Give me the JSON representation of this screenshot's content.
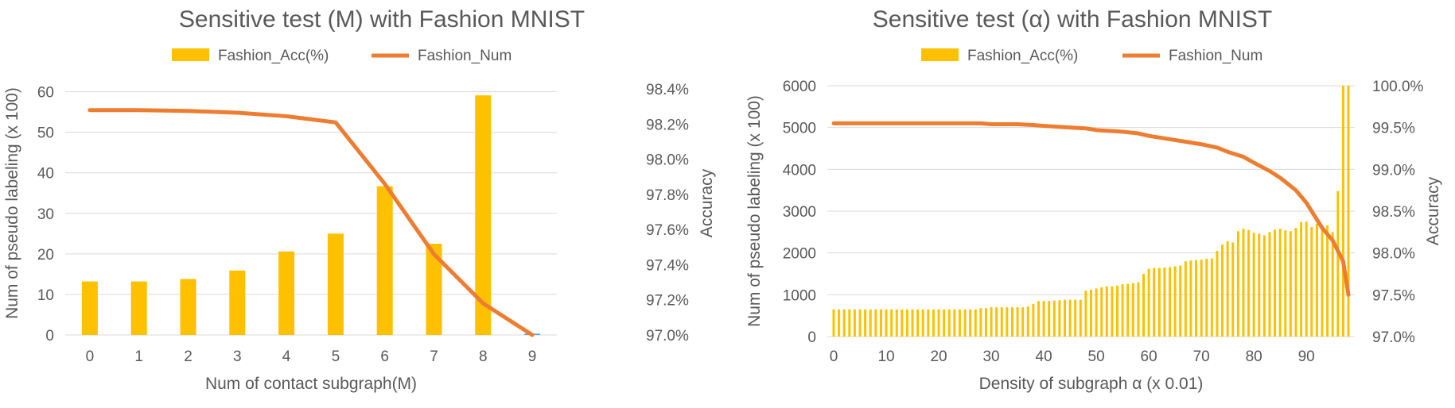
{
  "colors": {
    "bar": "#FFC000",
    "line": "#ED7D31",
    "text": "#595959",
    "grid": "#D9D9D9"
  },
  "chart_data": [
    {
      "type": "bar+line",
      "title": "Sensitive test (M) with Fashion MNIST",
      "xlabel": "Num of contact subgraph(M)",
      "ylabel": "Num of pseudo labeling (x 100)",
      "y2label": "Accuracy",
      "categories": [
        "0",
        "1",
        "2",
        "3",
        "4",
        "5",
        "6",
        "7",
        "8",
        "9"
      ],
      "ylim": [
        0,
        65
      ],
      "yticks": [
        "0",
        "10",
        "20",
        "30",
        "40",
        "50",
        "60"
      ],
      "y2lim": [
        97.0,
        98.5
      ],
      "y2ticks": [
        "97.0%",
        "97.2%",
        "97.4%",
        "97.6%",
        "97.8%",
        "98.0%",
        "98.2%",
        "98.4%"
      ],
      "legend_position": "top",
      "grid": true,
      "series": [
        {
          "name": "Fashion_Acc(%)",
          "type": "bar",
          "axis": "left",
          "values": [
            13.2,
            13.2,
            13.8,
            15.9,
            20.6,
            25.0,
            36.7,
            22.5,
            59.1,
            0.3
          ]
        },
        {
          "name": "Fashion_Num",
          "type": "line",
          "axis": "right",
          "values": [
            98.28,
            98.28,
            98.275,
            98.265,
            98.245,
            98.21,
            97.86,
            97.46,
            97.18,
            97.0
          ]
        }
      ]
    },
    {
      "type": "bar+line",
      "title": "Sensitive test (α) with Fashion MNIST",
      "xlabel": "Density of subgraph α (x 0.01)",
      "ylabel": "Num of pseudo labeling (x 100)",
      "y2label": "Accuracy",
      "x_ticks": [
        "0",
        "10",
        "20",
        "30",
        "40",
        "50",
        "60",
        "70",
        "80",
        "90"
      ],
      "xlim": [
        0,
        98
      ],
      "ylim": [
        0,
        6000
      ],
      "yticks": [
        "0",
        "1000",
        "2000",
        "3000",
        "4000",
        "5000",
        "6000"
      ],
      "y2lim": [
        97.0,
        100.0
      ],
      "y2ticks": [
        "97.0%",
        "97.5%",
        "98.0%",
        "98.5%",
        "99.0%",
        "99.5%",
        "100.0%"
      ],
      "legend_position": "top",
      "grid": true,
      "series": [
        {
          "name": "Fashion_Acc(%)",
          "type": "bar",
          "axis": "left",
          "x": [
            0,
            1,
            2,
            3,
            4,
            5,
            6,
            7,
            8,
            9,
            10,
            11,
            12,
            13,
            14,
            15,
            16,
            17,
            18,
            19,
            20,
            21,
            22,
            23,
            24,
            25,
            26,
            27,
            28,
            29,
            30,
            31,
            32,
            33,
            34,
            35,
            36,
            37,
            38,
            39,
            40,
            41,
            42,
            43,
            44,
            45,
            46,
            47,
            48,
            49,
            50,
            51,
            52,
            53,
            54,
            55,
            56,
            57,
            58,
            59,
            60,
            61,
            62,
            63,
            64,
            65,
            66,
            67,
            68,
            69,
            70,
            71,
            72,
            73,
            74,
            75,
            76,
            77,
            78,
            79,
            80,
            81,
            82,
            83,
            84,
            85,
            86,
            87,
            88,
            89,
            90,
            91,
            92,
            93,
            94,
            95,
            96,
            97,
            98
          ],
          "values": [
            650,
            650,
            650,
            650,
            650,
            650,
            650,
            650,
            650,
            650,
            650,
            650,
            650,
            650,
            650,
            650,
            650,
            650,
            650,
            650,
            650,
            650,
            650,
            650,
            650,
            650,
            650,
            650,
            680,
            680,
            700,
            700,
            700,
            700,
            700,
            700,
            700,
            720,
            780,
            850,
            850,
            850,
            860,
            870,
            880,
            880,
            880,
            880,
            1100,
            1120,
            1150,
            1180,
            1200,
            1200,
            1220,
            1250,
            1260,
            1280,
            1300,
            1500,
            1620,
            1640,
            1640,
            1650,
            1660,
            1680,
            1700,
            1800,
            1820,
            1830,
            1840,
            1860,
            1870,
            2050,
            2200,
            2280,
            2250,
            2520,
            2580,
            2550,
            2480,
            2460,
            2420,
            2500,
            2560,
            2580,
            2540,
            2520,
            2600,
            2740,
            2750,
            2620,
            2700,
            2640,
            2660,
            2500,
            3480,
            6000,
            6000
          ]
        },
        {
          "name": "Fashion_Num",
          "type": "line",
          "axis": "right",
          "x": [
            0,
            5,
            10,
            15,
            20,
            25,
            28,
            30,
            35,
            38,
            40,
            45,
            48,
            50,
            55,
            58,
            60,
            65,
            68,
            70,
            73,
            75,
            78,
            80,
            83,
            85,
            88,
            90,
            93,
            95,
            97,
            98
          ],
          "values": [
            99.55,
            99.55,
            99.55,
            99.55,
            99.55,
            99.55,
            99.55,
            99.54,
            99.54,
            99.53,
            99.52,
            99.5,
            99.49,
            99.47,
            99.45,
            99.43,
            99.4,
            99.35,
            99.32,
            99.3,
            99.26,
            99.21,
            99.15,
            99.08,
            98.98,
            98.9,
            98.75,
            98.6,
            98.3,
            98.15,
            97.9,
            97.5
          ]
        }
      ]
    }
  ]
}
